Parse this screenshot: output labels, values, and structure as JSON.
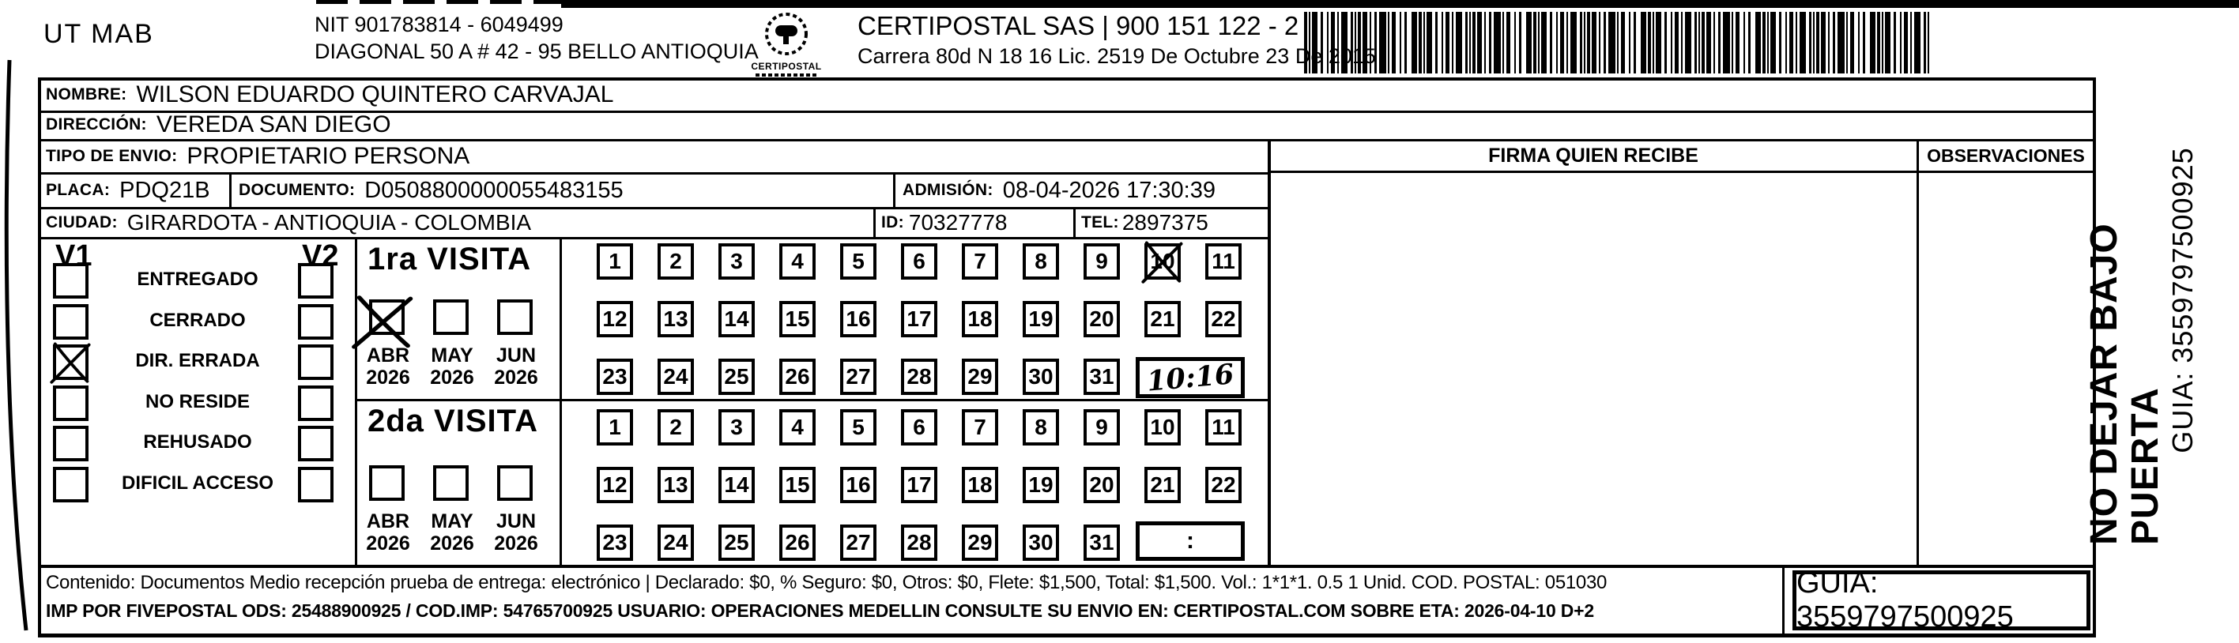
{
  "letterhead": {
    "sender": "UT MAB",
    "nit": "NIT 901783814 - 6049499",
    "address": "DIAGONAL 50 A # 42 - 95  BELLO  ANTIOQUIA",
    "logo_text": "CERTIPOSTAL",
    "company_line": "CERTIPOSTAL SAS | 900 151 122 - 2",
    "license_line": "Carrera 80d N 18 16  Lic. 2519 De Octubre 23 De 2015"
  },
  "recipient": {
    "nombre_label": "NOMBRE:",
    "nombre": "WILSON EDUARDO QUINTERO CARVAJAL",
    "direccion_label": "DIRECCIÓN:",
    "direccion": "VEREDA SAN DIEGO",
    "tipo_label": "TIPO DE ENVIO:",
    "tipo": "PROPIETARIO PERSONA",
    "placa_label": "PLACA:",
    "placa": "PDQ21B",
    "documento_label": "DOCUMENTO:",
    "documento": "D0508800000055483155",
    "admision_label": "ADMISIÓN:",
    "admision": "08-04-2026 17:30:39",
    "ciudad_label": "CIUDAD:",
    "ciudad": "GIRARDOTA - ANTIOQUIA - COLOMBIA",
    "id_label": "ID:",
    "id": "70327778",
    "tel_label": "TEL:",
    "tel": "2897375"
  },
  "signature": {
    "firma_header": "FIRMA QUIEN RECIBE",
    "observaciones_header": "OBSERVACIONES"
  },
  "status_panel": {
    "v1_header": "V1",
    "v2_header": "V2",
    "options": [
      {
        "label": "ENTREGADO",
        "v1_checked": false,
        "v2_checked": false
      },
      {
        "label": "CERRADO",
        "v1_checked": false,
        "v2_checked": false
      },
      {
        "label": "DIR. ERRADA",
        "v1_checked": true,
        "v2_checked": false
      },
      {
        "label": "NO RESIDE",
        "v1_checked": false,
        "v2_checked": false
      },
      {
        "label": "REHUSADO",
        "v1_checked": false,
        "v2_checked": false
      },
      {
        "label": "DIFICIL ACCESO",
        "v1_checked": false,
        "v2_checked": false
      }
    ]
  },
  "calendar_rows": [
    [
      1,
      2,
      3,
      4,
      5,
      6,
      7,
      8,
      9,
      10,
      11
    ],
    [
      12,
      13,
      14,
      15,
      16,
      17,
      18,
      19,
      20,
      21,
      22
    ],
    [
      23,
      24,
      25,
      26,
      27,
      28,
      29,
      30,
      31
    ]
  ],
  "visits": [
    {
      "title": "1ra VISITA",
      "months": [
        {
          "name": "ABR",
          "year": "2026",
          "checked": true
        },
        {
          "name": "MAY",
          "year": "2026",
          "checked": false
        },
        {
          "name": "JUN",
          "year": "2026",
          "checked": false
        }
      ],
      "crossed_day": 10,
      "time": "10:16",
      "time_handwritten": true
    },
    {
      "title": "2da VISITA",
      "months": [
        {
          "name": "ABR",
          "year": "2026",
          "checked": false
        },
        {
          "name": "MAY",
          "year": "2026",
          "checked": false
        },
        {
          "name": "JUN",
          "year": "2026",
          "checked": false
        }
      ],
      "crossed_day": null,
      "time": ":",
      "time_handwritten": false
    }
  ],
  "footer": {
    "content_line": "Contenido: Documentos Medio recepción prueba de entrega: electrónico | Declarado: $0, % Seguro: $0, Otros: $0, Flete: $1,500, Total: $1,500. Vol.: 1*1*1. 0.5  1 Unid. COD. POSTAL: 051030",
    "system_line": "IMP POR FIVEPOSTAL ODS: 25488900925 / COD.IMP: 54765700925 USUARIO: OPERACIONES MEDELLIN CONSULTE SU ENVIO EN: CERTIPOSTAL.COM SOBRE ETA: 2026-04-10 D+2",
    "guia": "GUIA: 3559797500925"
  },
  "sidebar": {
    "warning": "NO DEJAR BAJO PUERTA",
    "guia": "GUIA: 3559797500925"
  }
}
